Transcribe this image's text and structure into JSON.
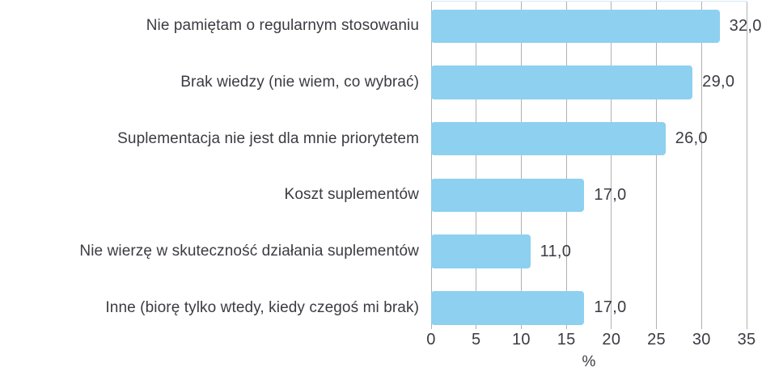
{
  "chart_data": {
    "type": "bar",
    "orientation": "horizontal",
    "categories": [
      "Nie pamiętam o regularnym stosowaniu",
      "Brak wiedzy (nie wiem, co wybrać)",
      "Suplementacja nie jest dla mnie priorytetem",
      "Koszt suplementów",
      "Nie wierzę w skuteczność działania suplementów",
      "Inne (biorę tylko wtedy, kiedy czegoś mi brak)"
    ],
    "values": [
      32.0,
      29.0,
      26.0,
      17.0,
      11.0,
      17.0
    ],
    "value_labels": [
      "32,0",
      "29,0",
      "26,0",
      "17,0",
      "11,0",
      "17,0"
    ],
    "xlabel": "%",
    "xlim": [
      0,
      35
    ],
    "xticks": [
      0,
      5,
      10,
      15,
      20,
      25,
      30,
      35
    ],
    "xtick_labels": [
      "0",
      "5",
      "10",
      "15",
      "20",
      "25",
      "30",
      "35"
    ],
    "grid": "vertical",
    "legend_position": "none",
    "colors": {
      "bar": "#8DD0F0",
      "gridline": "#b0b0b0",
      "text": "#3b3b43",
      "plot_top_border": "#d5ecf8",
      "background": "#ffffff"
    }
  }
}
